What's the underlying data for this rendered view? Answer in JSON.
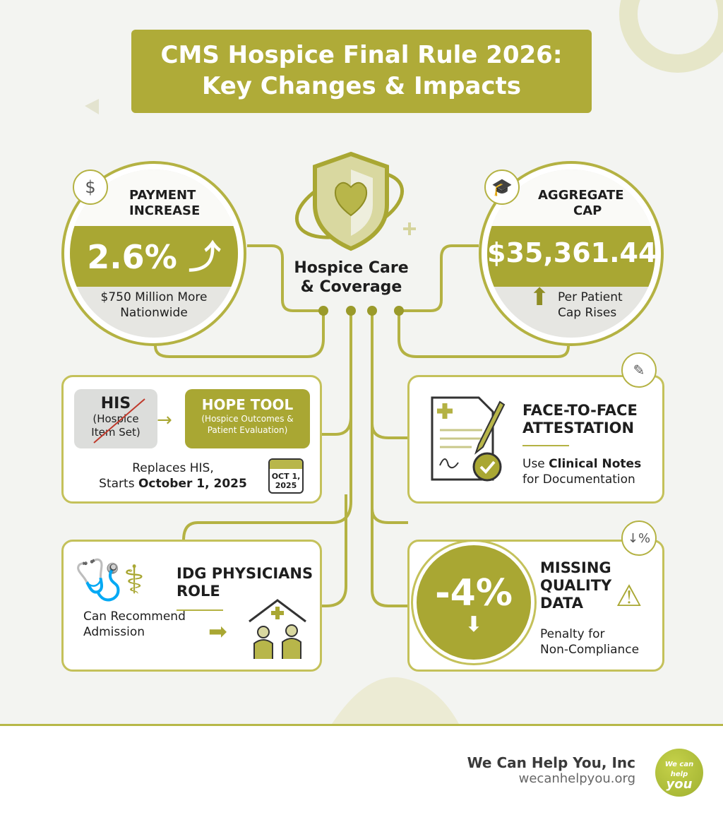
{
  "title": {
    "line1": "CMS Hospice Final Rule 2026:",
    "line2": "Key Changes & Impacts"
  },
  "center": {
    "label": "Hospice Care & Coverage",
    "icon": "shield-heart-icon"
  },
  "payment": {
    "label_line1": "PAYMENT",
    "label_line2": "INCREASE",
    "value": "2.6%",
    "sub_line1": "$750 Million More",
    "sub_line2": "Nationwide",
    "icon": "dollar-up-icon"
  },
  "cap": {
    "label_line1": "AGGREGATE",
    "label_line2": "CAP",
    "value": "$35,361.44",
    "sub_line1": "Per Patient",
    "sub_line2": "Cap Rises",
    "icon": "graduation-cap-icon"
  },
  "hope": {
    "old_title": "HIS",
    "old_sub_line1": "(Hospice",
    "old_sub_line2": "Item Set)",
    "new_title": "HOPE TOOL",
    "new_sub_line1": "(Hospice Outcomes &",
    "new_sub_line2": "Patient Evaluation)",
    "text_line1": "Replaces HIS,",
    "text_line2_prefix": "Starts ",
    "text_line2_bold": "October 1, 2025",
    "calendar_line1": "OCT 1,",
    "calendar_line2": "2025"
  },
  "f2f": {
    "title_line1": "FACE-TO-FACE",
    "title_line2": "ATTESTATION",
    "text_prefix": "Use ",
    "text_bold": "Clinical Notes",
    "text_line2": "for Documentation"
  },
  "idg": {
    "title_line1": "IDG PHYSICIANS",
    "title_line2": "ROLE",
    "text_line1": "Can Recommend",
    "text_line2": "Admission"
  },
  "quality": {
    "value": "-4%",
    "title_line1": "MISSING",
    "title_line2": "QUALITY",
    "title_line3": "DATA",
    "text_line1": "Penalty for",
    "text_line2": "Non-Compliance"
  },
  "footer": {
    "company": "We Can Help You, Inc",
    "website": "wecanhelpyou.org",
    "logo_text": "We can help you"
  },
  "colors": {
    "accent": "#afab38",
    "border": "#c4c15a",
    "strike": "#c0392b"
  }
}
